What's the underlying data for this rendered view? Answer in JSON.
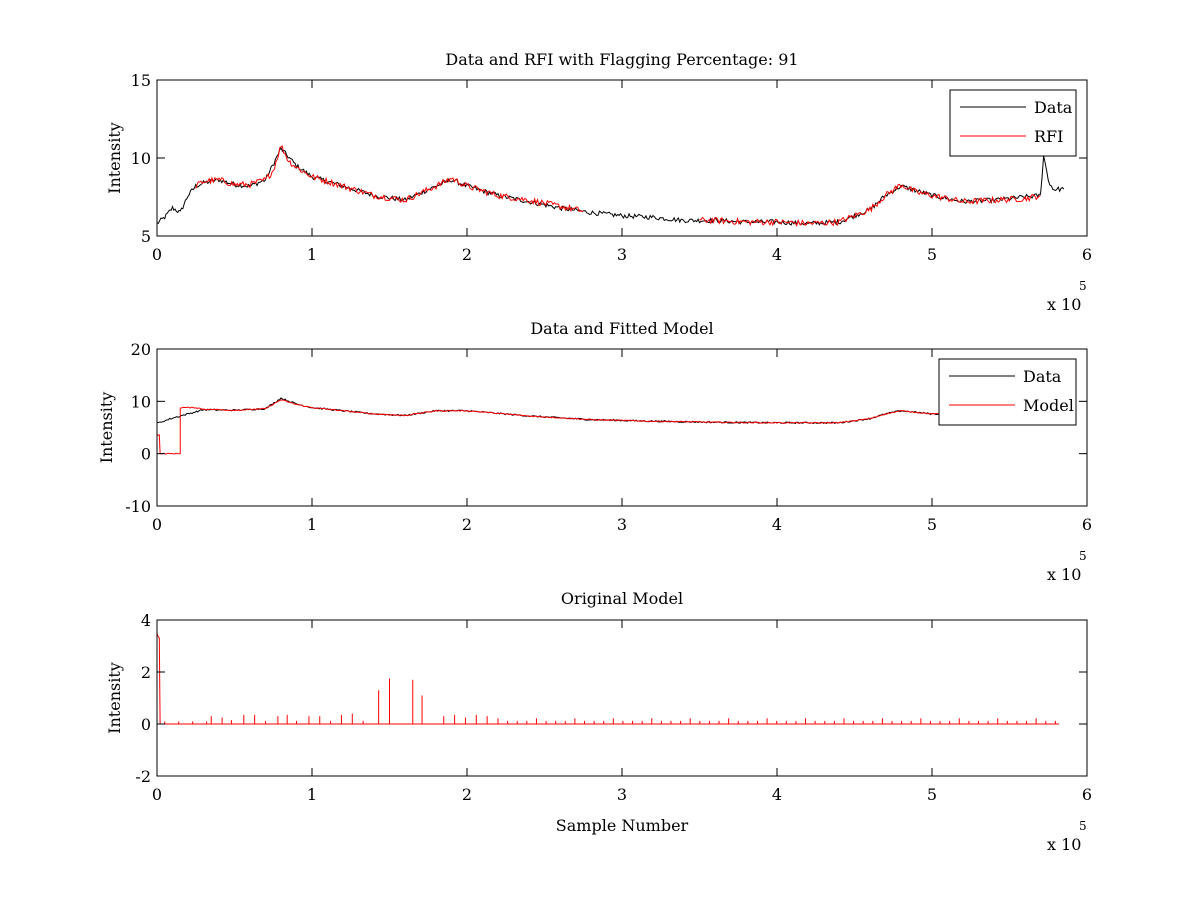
{
  "figure": {
    "background": "#ffffff",
    "line_colors": {
      "data": "#000000",
      "rfi": "#ff0000",
      "model": "#ff0000"
    }
  },
  "chart_data": [
    {
      "type": "line",
      "title": "Data and RFI with Flagging Percentage: 91",
      "xlabel": "",
      "ylabel": "Intensity",
      "xlim": [
        0,
        600000
      ],
      "ylim": [
        5,
        15
      ],
      "xticks": [
        0,
        100000,
        200000,
        300000,
        400000,
        500000,
        600000
      ],
      "xtick_labels": [
        "0",
        "1",
        "2",
        "3",
        "4",
        "5",
        "6"
      ],
      "yticks": [
        5,
        10,
        15
      ],
      "ytick_labels": [
        "5",
        "10",
        "15"
      ],
      "x_exponent": {
        "base": "x 10",
        "power": "5"
      },
      "legend": {
        "position": "top-right",
        "entries": [
          "Data",
          "RFI"
        ]
      },
      "series": [
        {
          "name": "Data",
          "color": "#000000",
          "x": [
            0,
            5000,
            10000,
            15000,
            20000,
            25000,
            30000,
            40000,
            50000,
            60000,
            70000,
            80000,
            90000,
            100000,
            120000,
            140000,
            160000,
            180000,
            190000,
            200000,
            220000,
            240000,
            260000,
            280000,
            300000,
            320000,
            340000,
            360000,
            380000,
            400000,
            420000,
            440000,
            460000,
            470000,
            480000,
            500000,
            520000,
            540000,
            560000,
            570000,
            572000,
            575000,
            578000,
            585000
          ],
          "y": [
            5.8,
            6.2,
            6.8,
            6.5,
            7.6,
            8.2,
            8.4,
            8.6,
            8.3,
            8.2,
            8.6,
            10.6,
            9.5,
            8.8,
            8.2,
            7.6,
            7.3,
            8.2,
            8.6,
            8.2,
            7.6,
            7.2,
            6.8,
            6.5,
            6.3,
            6.2,
            6.0,
            6.0,
            5.9,
            5.9,
            5.8,
            5.9,
            6.7,
            7.6,
            8.2,
            7.6,
            7.2,
            7.3,
            7.5,
            7.6,
            10.2,
            8.6,
            8.0,
            8.0
          ],
          "noise": 0.15
        },
        {
          "name": "RFI",
          "color": "#ff0000",
          "segments": [
            {
              "x": [
                25000,
                30000,
                40000,
                50000,
                60000,
                70000,
                75000,
                80000,
                85000,
                90000,
                100000,
                120000,
                140000,
                160000,
                180000,
                190000,
                200000,
                220000,
                240000,
                260000,
                275000
              ],
              "y": [
                8.2,
                8.5,
                8.6,
                8.3,
                8.3,
                8.6,
                9.2,
                10.8,
                9.8,
                9.4,
                8.8,
                8.2,
                7.6,
                7.3,
                8.2,
                8.7,
                8.2,
                7.6,
                7.3,
                6.9,
                6.6
              ]
            },
            {
              "x": [
                350000,
                360000,
                380000,
                400000,
                420000,
                440000,
                460000,
                470000,
                480000,
                490000,
                500000,
                520000,
                540000,
                560000,
                570000
              ],
              "y": [
                6.0,
                6.0,
                5.9,
                5.9,
                5.8,
                5.9,
                6.7,
                7.6,
                8.3,
                7.8,
                7.6,
                7.2,
                7.3,
                7.4,
                7.6
              ]
            }
          ],
          "noise": 0.2
        }
      ]
    },
    {
      "type": "line",
      "title": "Data and Fitted Model",
      "xlabel": "",
      "ylabel": "Intensity",
      "xlim": [
        0,
        600000
      ],
      "ylim": [
        -10,
        20
      ],
      "xticks": [
        0,
        100000,
        200000,
        300000,
        400000,
        500000,
        600000
      ],
      "xtick_labels": [
        "0",
        "1",
        "2",
        "3",
        "4",
        "5",
        "6"
      ],
      "yticks": [
        -10,
        0,
        10,
        20
      ],
      "ytick_labels": [
        "-10",
        "0",
        "10",
        "20"
      ],
      "x_exponent": {
        "base": "x 10",
        "power": "5"
      },
      "legend": {
        "position": "top-right",
        "entries": [
          "Data",
          "Model"
        ]
      },
      "series": [
        {
          "name": "Data",
          "color": "#000000",
          "x": [
            0,
            10000,
            20000,
            30000,
            50000,
            70000,
            80000,
            90000,
            100000,
            140000,
            160000,
            180000,
            200000,
            240000,
            280000,
            320000,
            360000,
            400000,
            440000,
            460000,
            470000,
            480000,
            500000,
            505000
          ],
          "y": [
            5.8,
            6.8,
            7.6,
            8.4,
            8.3,
            8.6,
            10.6,
            9.5,
            8.8,
            7.6,
            7.3,
            8.2,
            8.2,
            7.2,
            6.5,
            6.2,
            6.0,
            5.9,
            5.9,
            6.7,
            7.6,
            8.2,
            7.6,
            7.6
          ],
          "noise": 0.15
        },
        {
          "name": "Model",
          "color": "#ff0000",
          "x": [
            0,
            1500,
            2000,
            3000,
            15000,
            15000,
            25000,
            30000,
            50000,
            70000,
            80000,
            90000,
            100000,
            140000,
            160000,
            180000,
            200000,
            240000,
            280000,
            320000,
            360000,
            400000,
            440000,
            460000,
            470000,
            480000,
            500000,
            505000
          ],
          "y": [
            3.6,
            3.6,
            0,
            0,
            0,
            8.8,
            8.8,
            8.5,
            8.3,
            8.6,
            10.3,
            9.4,
            8.8,
            7.6,
            7.3,
            8.2,
            8.2,
            7.2,
            6.5,
            6.2,
            6.0,
            5.9,
            5.9,
            6.7,
            7.6,
            8.2,
            7.6,
            7.6
          ],
          "noise": 0.1
        }
      ]
    },
    {
      "type": "line",
      "title": "Original Model",
      "xlabel": "Sample Number",
      "ylabel": "Intensity",
      "xlim": [
        0,
        600000
      ],
      "ylim": [
        -2,
        4
      ],
      "xticks": [
        0,
        100000,
        200000,
        300000,
        400000,
        500000,
        600000
      ],
      "xtick_labels": [
        "0",
        "1",
        "2",
        "3",
        "4",
        "5",
        "6"
      ],
      "yticks": [
        -2,
        0,
        2,
        4
      ],
      "ytick_labels": [
        "-2",
        "0",
        "2",
        "4"
      ],
      "x_exponent": {
        "base": "x 10",
        "power": "5"
      },
      "series": [
        {
          "name": "Model",
          "color": "#ff0000",
          "baseline": 0,
          "x_end": 582000,
          "initial_pulse": {
            "x": [
              0,
              500,
              1500,
              2000,
              3000
            ],
            "y": [
              3.5,
              3.4,
              3.3,
              0,
              0
            ]
          },
          "spikes": [
            {
              "x": 143000,
              "y": 1.3
            },
            {
              "x": 150000,
              "y": 1.75
            },
            {
              "x": 165000,
              "y": 1.7
            },
            {
              "x": 171000,
              "y": 1.1
            },
            {
              "x": 35000,
              "y": 0.3
            },
            {
              "x": 42000,
              "y": 0.25
            },
            {
              "x": 48000,
              "y": 0.15
            },
            {
              "x": 56000,
              "y": 0.35
            },
            {
              "x": 63000,
              "y": 0.35
            },
            {
              "x": 70000,
              "y": 0.12
            },
            {
              "x": 78000,
              "y": 0.3
            },
            {
              "x": 84000,
              "y": 0.35
            },
            {
              "x": 90000,
              "y": 0.12
            },
            {
              "x": 98000,
              "y": 0.3
            },
            {
              "x": 105000,
              "y": 0.3
            },
            {
              "x": 112000,
              "y": 0.12
            },
            {
              "x": 119000,
              "y": 0.35
            },
            {
              "x": 126000,
              "y": 0.4
            },
            {
              "x": 133000,
              "y": 0.12
            },
            {
              "x": 185000,
              "y": 0.3
            },
            {
              "x": 192000,
              "y": 0.35
            },
            {
              "x": 199000,
              "y": 0.25
            },
            {
              "x": 206000,
              "y": 0.35
            },
            {
              "x": 213000,
              "y": 0.3
            }
          ],
          "periodic_spikes": {
            "start": 220000,
            "end": 580000,
            "step": 6200,
            "height": 0.12,
            "strong_step": 4,
            "strong_height": 0.22
          },
          "small_spikes": {
            "start": 5000,
            "end": 34000,
            "step": 9000,
            "height": 0.1
          }
        }
      ]
    }
  ]
}
